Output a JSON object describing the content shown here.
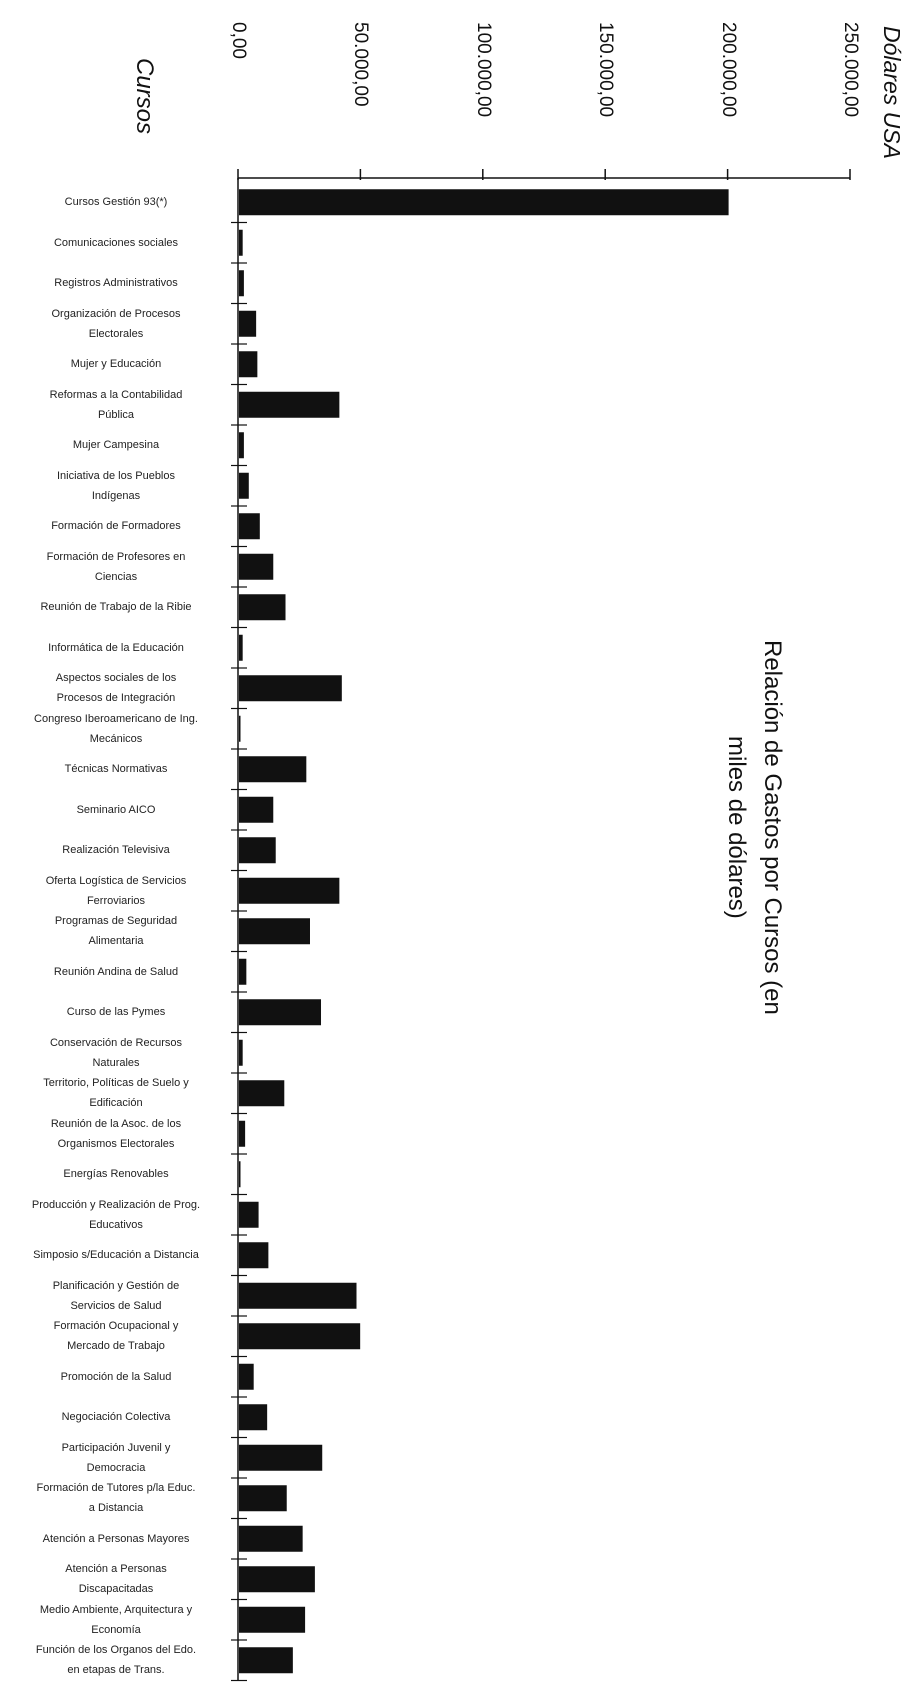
{
  "chart_data": {
    "type": "bar",
    "orientation": "horizontal",
    "title_lines": [
      "Relación de Gastos por Cursos (en",
      "miles de dólares)"
    ],
    "ylabel": "Cursos",
    "value_axis_label": "Dólares USA",
    "value_ticks": [
      "0,00",
      "50.000,00",
      "100.000,00",
      "150.000,00",
      "200.000,00",
      "250.000,00"
    ],
    "xlim": [
      0,
      250000
    ],
    "grid": false,
    "legend": "none",
    "bar_color": "#111111",
    "categories": [
      [
        "Cursos Gestión 93(*)"
      ],
      [
        "Comunicaciones sociales"
      ],
      [
        "Registros Administrativos"
      ],
      [
        "Organización de Procesos",
        "Electorales"
      ],
      [
        "Mujer y Educación"
      ],
      [
        "Reformas a la Contabilidad",
        "Pública"
      ],
      [
        "Mujer Campesina"
      ],
      [
        "Iniciativa de los Pueblos",
        "Indígenas"
      ],
      [
        "Formación de Formadores"
      ],
      [
        "Formación de Profesores en",
        "Ciencias"
      ],
      [
        "Reunión de Trabajo de la Ribie"
      ],
      [
        "Informática de la Educación"
      ],
      [
        "Aspectos sociales de los",
        "Procesos de Integración"
      ],
      [
        "Congreso Iberoamericano de Ing.",
        "Mecánicos"
      ],
      [
        "Técnicas Normativas"
      ],
      [
        "Seminario AICO"
      ],
      [
        "Realización Televisiva"
      ],
      [
        "Oferta Logística de Servicios",
        "Ferroviarios"
      ],
      [
        "Programas de Seguridad",
        "Alimentaria"
      ],
      [
        "Reunión Andina de Salud"
      ],
      [
        "Curso de las Pymes"
      ],
      [
        "Conservación de Recursos",
        "Naturales"
      ],
      [
        "Territorio, Políticas de Suelo y",
        "Edificación"
      ],
      [
        "Reunión de la Asoc. de los",
        "Organismos Electorales"
      ],
      [
        "Energías Renovables"
      ],
      [
        "Producción y Realización de Prog.",
        "Educativos"
      ],
      [
        "Simposio s/Educación a Distancia"
      ],
      [
        "Planificación y Gestión de",
        "Servicios de Salud"
      ],
      [
        "Formación Ocupacional y",
        "Mercado de Trabajo"
      ],
      [
        "Promoción de la Salud"
      ],
      [
        "Negociación Colectiva"
      ],
      [
        "Participación Juvenil y",
        "Democracia"
      ],
      [
        "Formación de Tutores p/la Educ.",
        "a Distancia"
      ],
      [
        "Atención a Personas Mayores"
      ],
      [
        "Atención a Personas",
        "Discapacitadas"
      ],
      [
        "Medio Ambiente, Arquitectura y",
        "Economía"
      ],
      [
        "Función de los Organos del Edo.",
        "en etapas de Trans."
      ]
    ],
    "values": [
      200000,
      1500,
      2000,
      7000,
      7500,
      41000,
      2000,
      4000,
      8500,
      14000,
      19000,
      1500,
      42000,
      500,
      27500,
      14000,
      15000,
      41000,
      29000,
      3000,
      33500,
      1500,
      18500,
      2500,
      500,
      8000,
      12000,
      48000,
      49500,
      6000,
      11500,
      34000,
      19500,
      26000,
      31000,
      27000,
      22000
    ]
  }
}
